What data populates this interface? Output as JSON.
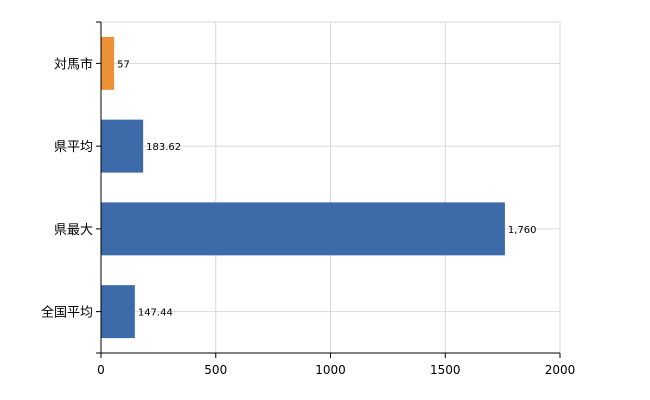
{
  "chart_data": {
    "type": "bar",
    "orientation": "horizontal",
    "categories": [
      "対馬市",
      "県平均",
      "県最大",
      "全国平均"
    ],
    "values": [
      57,
      183.62,
      1760,
      147.44
    ],
    "value_labels": [
      "57",
      "183.62",
      "1,760",
      "147.44"
    ],
    "bar_colors": [
      "#ed8f34",
      "#3d6aa8",
      "#3d6aa8",
      "#3d6aa8"
    ],
    "xlim": [
      0,
      2000
    ],
    "xticks": [
      0,
      500,
      1000,
      1500,
      2000
    ],
    "xtick_labels": [
      "0",
      "500",
      "1000",
      "1500",
      "2000"
    ],
    "grid": true,
    "title": "",
    "xlabel": "",
    "ylabel": ""
  }
}
